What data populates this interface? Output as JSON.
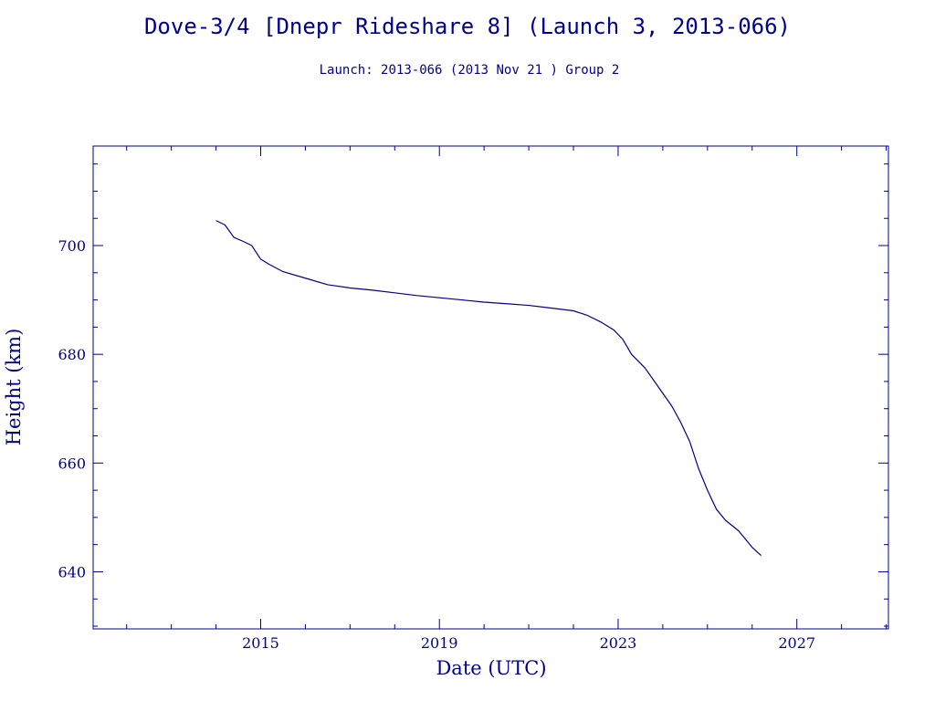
{
  "chart_data": {
    "type": "line",
    "title": "Dove-3/4 [Dnepr Rideshare 8] (Launch 3, 2013-066)",
    "subtitle": "Launch: 2013-066  (2013 Nov 21 )  Group 2",
    "xlabel": "Date (UTC)",
    "ylabel": "Height (km)",
    "xlim": [
      2011.25,
      2029.05
    ],
    "ylim": [
      629.5,
      718.3
    ],
    "x_ticks": [
      2015,
      2019,
      2023,
      2027
    ],
    "x_tick_labels": [
      "2015",
      "2019",
      "2023",
      "2027"
    ],
    "y_ticks": [
      640,
      660,
      680,
      700
    ],
    "y_tick_labels": [
      "640",
      "660",
      "680",
      "700"
    ],
    "grid": false,
    "color": "#00008b",
    "series": [
      {
        "x": [
          2014.0,
          2014.2,
          2014.4,
          2014.6,
          2014.8,
          2015.0,
          2015.2,
          2015.5,
          2016.0,
          2016.5,
          2017.0,
          2017.5,
          2018.0,
          2018.5,
          2019.0,
          2019.5,
          2020.0,
          2020.5,
          2021.0,
          2021.5,
          2022.0,
          2022.3,
          2022.6,
          2022.9,
          2023.1,
          2023.3,
          2023.6,
          2023.9,
          2024.2,
          2024.4,
          2024.6,
          2024.8,
          2025.0,
          2025.2,
          2025.4,
          2025.7,
          2026.0,
          2026.2
        ],
        "y": [
          704.6,
          703.8,
          701.5,
          700.8,
          700.0,
          697.5,
          696.5,
          695.2,
          694.0,
          692.8,
          692.2,
          691.8,
          691.3,
          690.8,
          690.4,
          690.0,
          689.6,
          689.3,
          689.0,
          688.5,
          688.0,
          687.2,
          686.0,
          684.5,
          682.8,
          680.0,
          677.5,
          674.0,
          670.5,
          667.5,
          664.0,
          659.0,
          655.0,
          651.5,
          649.5,
          647.5,
          644.5,
          643.0
        ]
      }
    ]
  }
}
